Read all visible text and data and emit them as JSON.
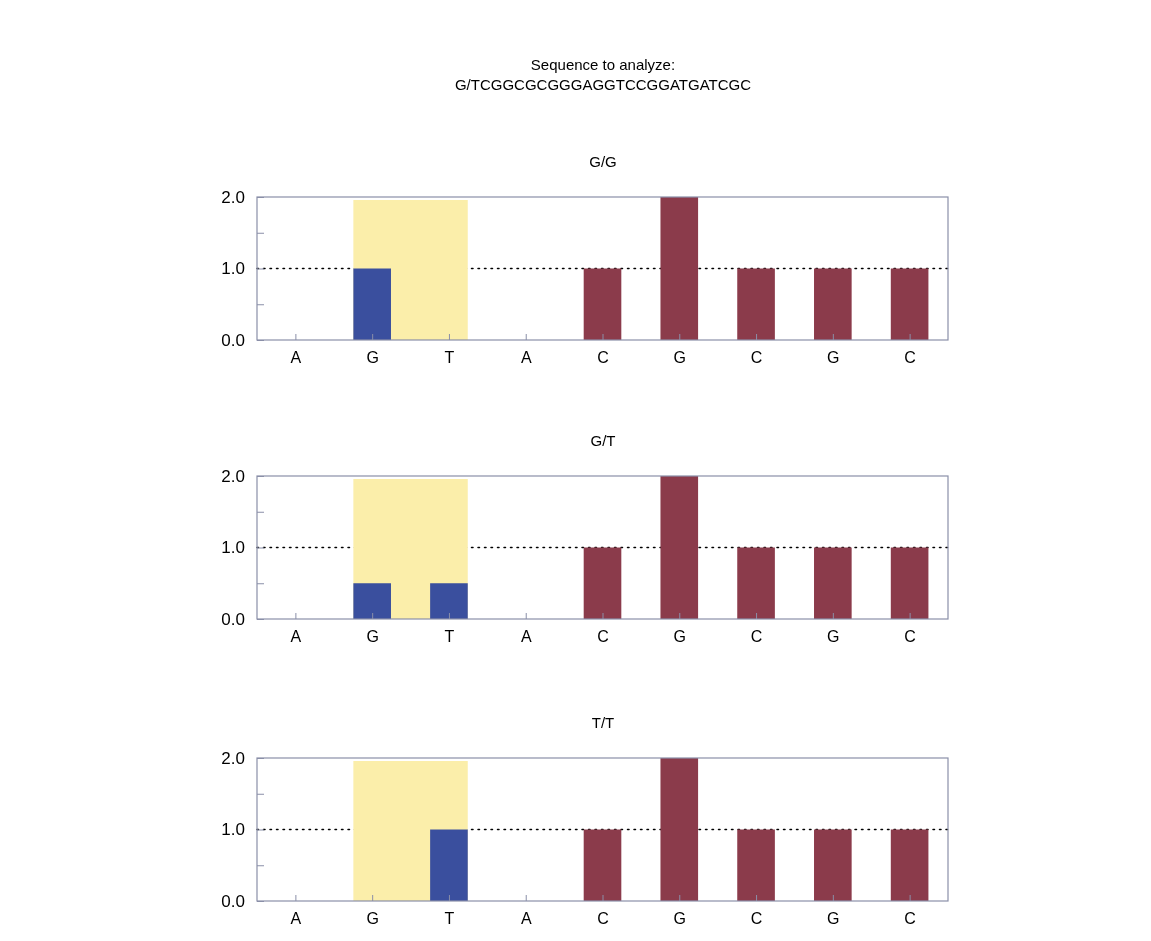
{
  "chart_data": [
    {
      "type": "bar",
      "title": "G/G",
      "annotations": [
        "Sequence to analyze:",
        "G/TCGGCGCGGGAGGTCCGGATGATCGC"
      ],
      "categories": [
        "A",
        "G",
        "T",
        "A",
        "C",
        "G",
        "C",
        "G",
        "C"
      ],
      "values": [
        0,
        1,
        0,
        0,
        1,
        2,
        1,
        1,
        1
      ],
      "colors": [
        "#8b3b4b",
        "#3a4f9e",
        "#3a4f9e",
        "#8b3b4b",
        "#8b3b4b",
        "#8b3b4b",
        "#8b3b4b",
        "#8b3b4b",
        "#8b3b4b"
      ],
      "ylim": [
        0,
        2
      ],
      "yticks": [
        {
          "value": 0,
          "label": "0.0"
        },
        {
          "value": 0.5,
          "label": null
        },
        {
          "value": 1,
          "label": "1.0"
        },
        {
          "value": 1.5,
          "label": null
        },
        {
          "value": 2,
          "label": "2.0"
        }
      ],
      "ref_lines": [
        {
          "axis": "y",
          "value": 1,
          "line_style": "dotted",
          "color": "#000000"
        }
      ],
      "bands": [
        {
          "axis": "x",
          "from": "G",
          "to": "T",
          "color": "#fbeeaa"
        }
      ]
    },
    {
      "type": "bar",
      "title": "G/T",
      "categories": [
        "A",
        "G",
        "T",
        "A",
        "C",
        "G",
        "C",
        "G",
        "C"
      ],
      "values": [
        0,
        0.5,
        0.5,
        0,
        1,
        2,
        1,
        1,
        1
      ],
      "colors": [
        "#8b3b4b",
        "#3a4f9e",
        "#3a4f9e",
        "#8b3b4b",
        "#8b3b4b",
        "#8b3b4b",
        "#8b3b4b",
        "#8b3b4b",
        "#8b3b4b"
      ],
      "ylim": [
        0,
        2
      ],
      "yticks": [
        {
          "value": 0,
          "label": "0.0"
        },
        {
          "value": 0.5,
          "label": null
        },
        {
          "value": 1,
          "label": "1.0"
        },
        {
          "value": 1.5,
          "label": null
        },
        {
          "value": 2,
          "label": "2.0"
        }
      ],
      "ref_lines": [
        {
          "axis": "y",
          "value": 1,
          "line_style": "dotted",
          "color": "#000000"
        }
      ],
      "bands": [
        {
          "axis": "x",
          "from": "G",
          "to": "T",
          "color": "#fbeeaa"
        }
      ]
    },
    {
      "type": "bar",
      "title": "T/T",
      "categories": [
        "A",
        "G",
        "T",
        "A",
        "C",
        "G",
        "C",
        "G",
        "C"
      ],
      "values": [
        0,
        0,
        1,
        0,
        1,
        2,
        1,
        1,
        1
      ],
      "colors": [
        "#8b3b4b",
        "#3a4f9e",
        "#3a4f9e",
        "#8b3b4b",
        "#8b3b4b",
        "#8b3b4b",
        "#8b3b4b",
        "#8b3b4b",
        "#8b3b4b"
      ],
      "ylim": [
        0,
        2
      ],
      "yticks": [
        {
          "value": 0,
          "label": "0.0"
        },
        {
          "value": 0.5,
          "label": null
        },
        {
          "value": 1,
          "label": "1.0"
        },
        {
          "value": 1.5,
          "label": null
        },
        {
          "value": 2,
          "label": "2.0"
        }
      ],
      "ref_lines": [
        {
          "axis": "y",
          "value": 1,
          "line_style": "dotted",
          "color": "#000000"
        }
      ],
      "bands": [
        {
          "axis": "x",
          "from": "G",
          "to": "T",
          "color": "#fbeeaa"
        }
      ]
    }
  ]
}
